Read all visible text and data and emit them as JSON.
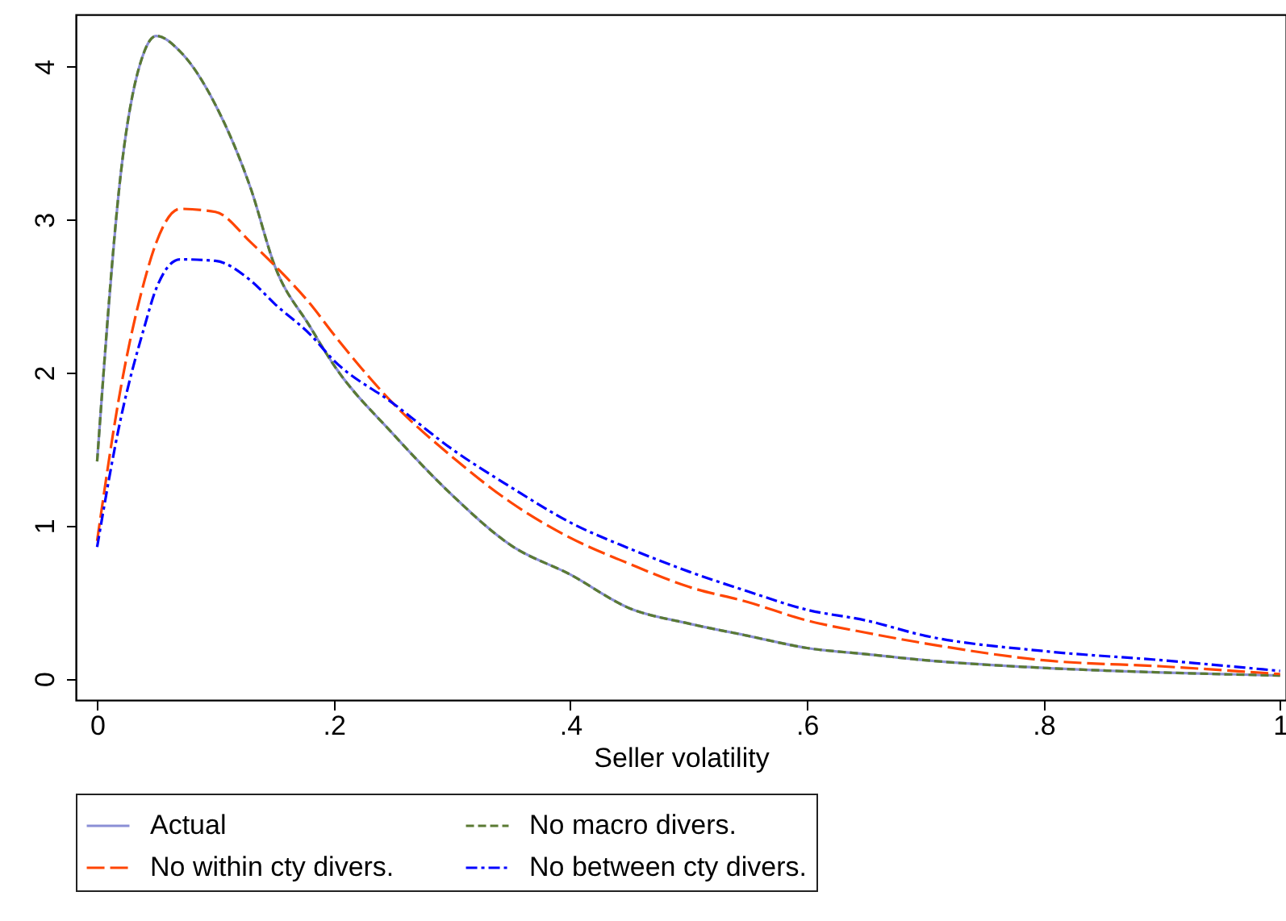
{
  "chart_data": {
    "type": "line",
    "xlabel": "Seller volatility",
    "x": [
      0,
      0.02,
      0.04,
      0.05,
      0.07,
      0.1,
      0.13,
      0.15,
      0.18,
      0.2,
      0.25,
      0.3,
      0.35,
      0.4,
      0.45,
      0.5,
      0.55,
      0.6,
      0.65,
      0.7,
      0.8,
      0.9,
      1.0
    ],
    "series": [
      {
        "name": "Actual",
        "color": "#8b8fd6",
        "line_style": "solid",
        "values": [
          1.42,
          3.3,
          4.1,
          4.2,
          4.1,
          3.75,
          3.2,
          2.7,
          2.3,
          2.05,
          1.6,
          1.2,
          0.87,
          0.68,
          0.46,
          0.36,
          0.28,
          0.2,
          0.16,
          0.12,
          0.07,
          0.04,
          0.02
        ]
      },
      {
        "name": "No macro divers.",
        "color": "#5a7a33",
        "line_style": "dashed",
        "values": [
          1.42,
          3.3,
          4.1,
          4.2,
          4.1,
          3.75,
          3.2,
          2.7,
          2.3,
          2.05,
          1.6,
          1.2,
          0.87,
          0.68,
          0.46,
          0.36,
          0.28,
          0.2,
          0.16,
          0.12,
          0.07,
          0.04,
          0.02
        ]
      },
      {
        "name": "No within cty divers.",
        "color": "#ff4500",
        "line_style": "longdash",
        "values": [
          0.9,
          1.9,
          2.6,
          2.85,
          3.07,
          3.05,
          2.85,
          2.7,
          2.45,
          2.25,
          1.8,
          1.45,
          1.15,
          0.92,
          0.75,
          0.6,
          0.5,
          0.38,
          0.3,
          0.23,
          0.12,
          0.08,
          0.03
        ]
      },
      {
        "name": "No between cty divers.",
        "color": "#0000ff",
        "line_style": "dashdot",
        "values": [
          0.86,
          1.7,
          2.3,
          2.55,
          2.74,
          2.73,
          2.6,
          2.45,
          2.25,
          2.08,
          1.8,
          1.5,
          1.25,
          1.02,
          0.85,
          0.7,
          0.57,
          0.45,
          0.38,
          0.28,
          0.18,
          0.12,
          0.05
        ]
      }
    ],
    "xlim": [
      -0.018,
      1.005
    ],
    "ylim": [
      -0.14,
      4.34
    ],
    "xticks": [
      0,
      {
        "value": 0.2,
        "label": ".2"
      },
      {
        "value": 0.4,
        "label": ".4"
      },
      {
        "value": 0.6,
        "label": ".6"
      },
      {
        "value": 0.8,
        "label": ".8"
      },
      1
    ],
    "yticks": [
      0,
      1,
      2,
      3,
      4
    ],
    "grid": false,
    "legend": "bottom"
  }
}
